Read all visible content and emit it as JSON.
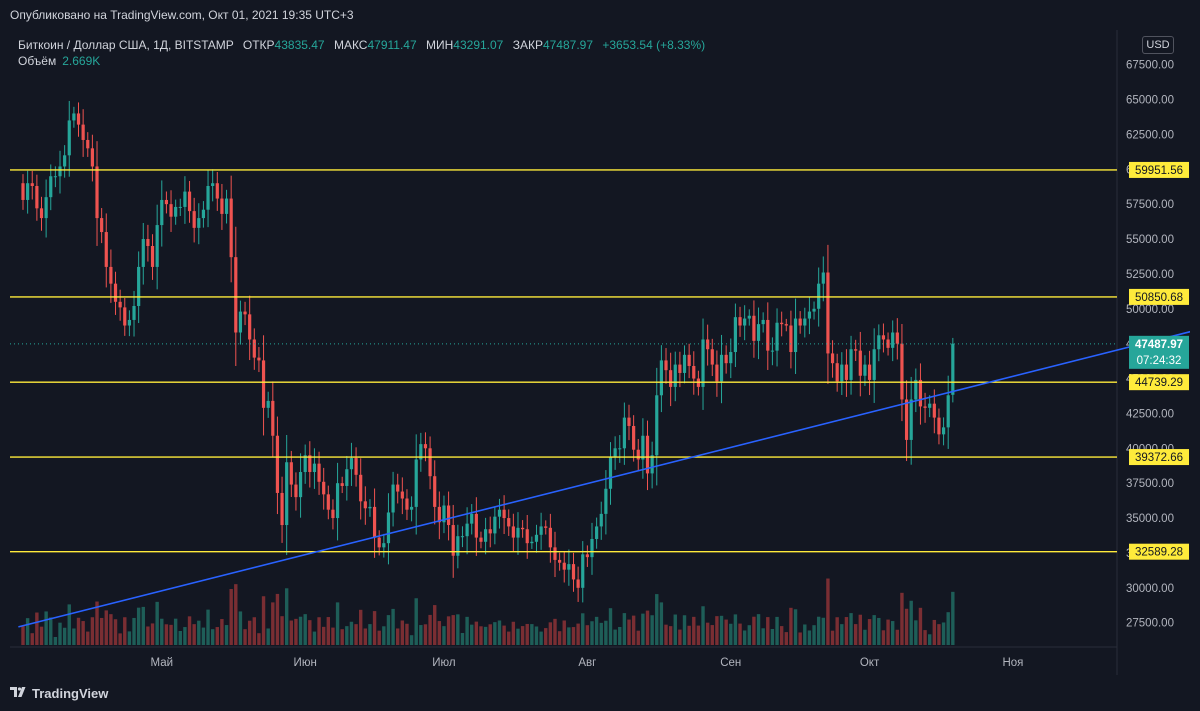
{
  "header": {
    "published": "Опубликовано на TradingView.com, Окт 01, 2021 19:35 UTC+3"
  },
  "legend": {
    "symbol": "Биткоин / Доллар США, 1Д, BITSTAMP",
    "open_label": "ОТКР",
    "open": "43835.47",
    "high_label": "МАКС",
    "high": "47911.47",
    "low_label": "МИН",
    "low": "43291.07",
    "close_label": "ЗАКР",
    "close": "47487.97",
    "change": "+3653.54 (+8.33%)",
    "volume_label": "Объём",
    "volume": "2.669K"
  },
  "currency": "USD",
  "footer": {
    "brand": "TradingView"
  },
  "colors": {
    "background": "#131722",
    "up": "#26a69a",
    "down": "#ef5350",
    "level_line": "#ffeb3b",
    "trend_line": "#2962ff"
  },
  "chart_data": {
    "type": "candlestick",
    "title": "Биткоин / Доллар США, 1Д, BITSTAMP",
    "y_axis": {
      "ticks": [
        67500,
        65000,
        62500,
        60000,
        57500,
        55000,
        52500,
        50000,
        47500,
        45000,
        42500,
        40000,
        37500,
        35000,
        32500,
        30000,
        27500
      ],
      "range": [
        25500,
        68200
      ]
    },
    "x_axis": {
      "ticks": [
        "Май",
        "Июн",
        "Июл",
        "Авг",
        "Сен",
        "Окт",
        "Ноя"
      ]
    },
    "first_candle_date": "2021-04-01",
    "closes": [
      57800,
      59000,
      58800,
      57200,
      56500,
      58000,
      59500,
      59500,
      60200,
      61000,
      63500,
      64000,
      63200,
      62100,
      61500,
      60200,
      56500,
      55500,
      53000,
      51800,
      50500,
      50100,
      48800,
      49200,
      50200,
      53000,
      55000,
      54500,
      53000,
      56000,
      57800,
      57500,
      56600,
      57300,
      57300,
      58400,
      57000,
      55800,
      56500,
      57100,
      58800,
      59000,
      57900,
      56800,
      57900,
      53700,
      48300,
      49800,
      49600,
      47800,
      46500,
      46300,
      42900,
      43400,
      40900,
      36800,
      34500,
      39000,
      37400,
      36500,
      38300,
      39500,
      38300,
      38900,
      37600,
      36700,
      35600,
      35000,
      37500,
      37300,
      38500,
      39300,
      38100,
      36200,
      35700,
      35800,
      33600,
      32900,
      33200,
      35400,
      37400,
      36900,
      36400,
      35600,
      35800,
      39200,
      40300,
      40000,
      38000,
      35800,
      34700,
      35900,
      34500,
      32300,
      33700,
      33700,
      34600,
      35300,
      33600,
      33300,
      34200,
      33900,
      35100,
      35600,
      35000,
      34400,
      33600,
      34300,
      34200,
      33200,
      33300,
      33800,
      34400,
      34300,
      32900,
      32000,
      31800,
      31300,
      31700,
      30600,
      30000,
      32400,
      32200,
      33500,
      34400,
      35300,
      37100,
      39400,
      40000,
      40000,
      42200,
      41600,
      39900,
      39200,
      40900,
      38200,
      39500,
      43800,
      46300,
      45600,
      44400,
      46000,
      45400,
      46700,
      45900,
      45000,
      44400,
      47800,
      47100,
      46000,
      44800,
      46700,
      46100,
      46900,
      49400,
      48800,
      49300,
      49500,
      47700,
      48900,
      49200,
      47000,
      47000,
      49000,
      48900,
      48800,
      46900,
      49300,
      48800,
      49300,
      49800,
      50000,
      51800,
      52600,
      46800,
      46100,
      44800,
      46000,
      44900,
      47100,
      47000,
      45200,
      46000,
      44900,
      47100,
      48100,
      47800,
      47200,
      48300,
      47500,
      43500,
      40600,
      43500,
      44900,
      43000,
      42900,
      43200,
      42200,
      41000,
      41500,
      43800,
      47500
    ],
    "opens": [
      59000,
      57800,
      59000,
      58800,
      57200,
      56500,
      58000,
      59500,
      59500,
      60200,
      61000,
      63500,
      64000,
      63200,
      62100,
      61500,
      60200,
      56500,
      55500,
      53000,
      51800,
      50500,
      50100,
      48800,
      49200,
      50200,
      53000,
      55000,
      54500,
      53000,
      56000,
      57800,
      57500,
      56600,
      57300,
      57300,
      58400,
      57000,
      55800,
      56500,
      57100,
      58800,
      59000,
      57900,
      56800,
      57900,
      53700,
      48300,
      49800,
      49600,
      47800,
      46500,
      46300,
      42900,
      43400,
      40900,
      36800,
      34500,
      39000,
      37400,
      36500,
      38300,
      39500,
      38300,
      38900,
      37600,
      36700,
      35600,
      35000,
      37500,
      37300,
      38500,
      39300,
      38100,
      36200,
      35700,
      35800,
      33600,
      32900,
      33200,
      35400,
      37400,
      36900,
      36400,
      35600,
      35800,
      39200,
      40300,
      40000,
      38000,
      35800,
      34700,
      35900,
      34500,
      32300,
      33700,
      33700,
      34600,
      35300,
      33600,
      33300,
      34200,
      33900,
      35100,
      35600,
      35000,
      34400,
      33600,
      34300,
      34200,
      33200,
      33300,
      33800,
      34400,
      34300,
      32900,
      32000,
      31800,
      31300,
      31700,
      30600,
      30000,
      32400,
      32200,
      33500,
      34400,
      35300,
      37100,
      39400,
      40000,
      40000,
      42200,
      41600,
      39900,
      39200,
      40900,
      38200,
      39500,
      43800,
      46300,
      45600,
      44400,
      46000,
      45400,
      46700,
      45900,
      45000,
      44400,
      47800,
      47100,
      46000,
      44800,
      46700,
      46100,
      46900,
      49400,
      48800,
      49300,
      49500,
      47700,
      48900,
      49200,
      47000,
      47000,
      49000,
      48900,
      48800,
      46900,
      49300,
      48800,
      49300,
      49800,
      50000,
      51800,
      52600,
      46800,
      46100,
      44800,
      46000,
      44900,
      47100,
      47000,
      45200,
      46000,
      44900,
      47100,
      48100,
      47800,
      47200,
      48300,
      47500,
      43500,
      40600,
      43500,
      44900,
      43000,
      42900,
      43200,
      42200,
      41000,
      41500,
      43835.47
    ],
    "high_last": 47911.47,
    "low_last": 43291.07,
    "horizontal_levels": [
      59951.56,
      50850.68,
      44739.29,
      39372.66,
      32589.28
    ],
    "trend_line": {
      "start": [
        "2021-03-31",
        27200
      ],
      "end": [
        "2021-12-17",
        49000
      ]
    },
    "last_price": 47487.97,
    "last_price_countdown": "07:24:32"
  }
}
